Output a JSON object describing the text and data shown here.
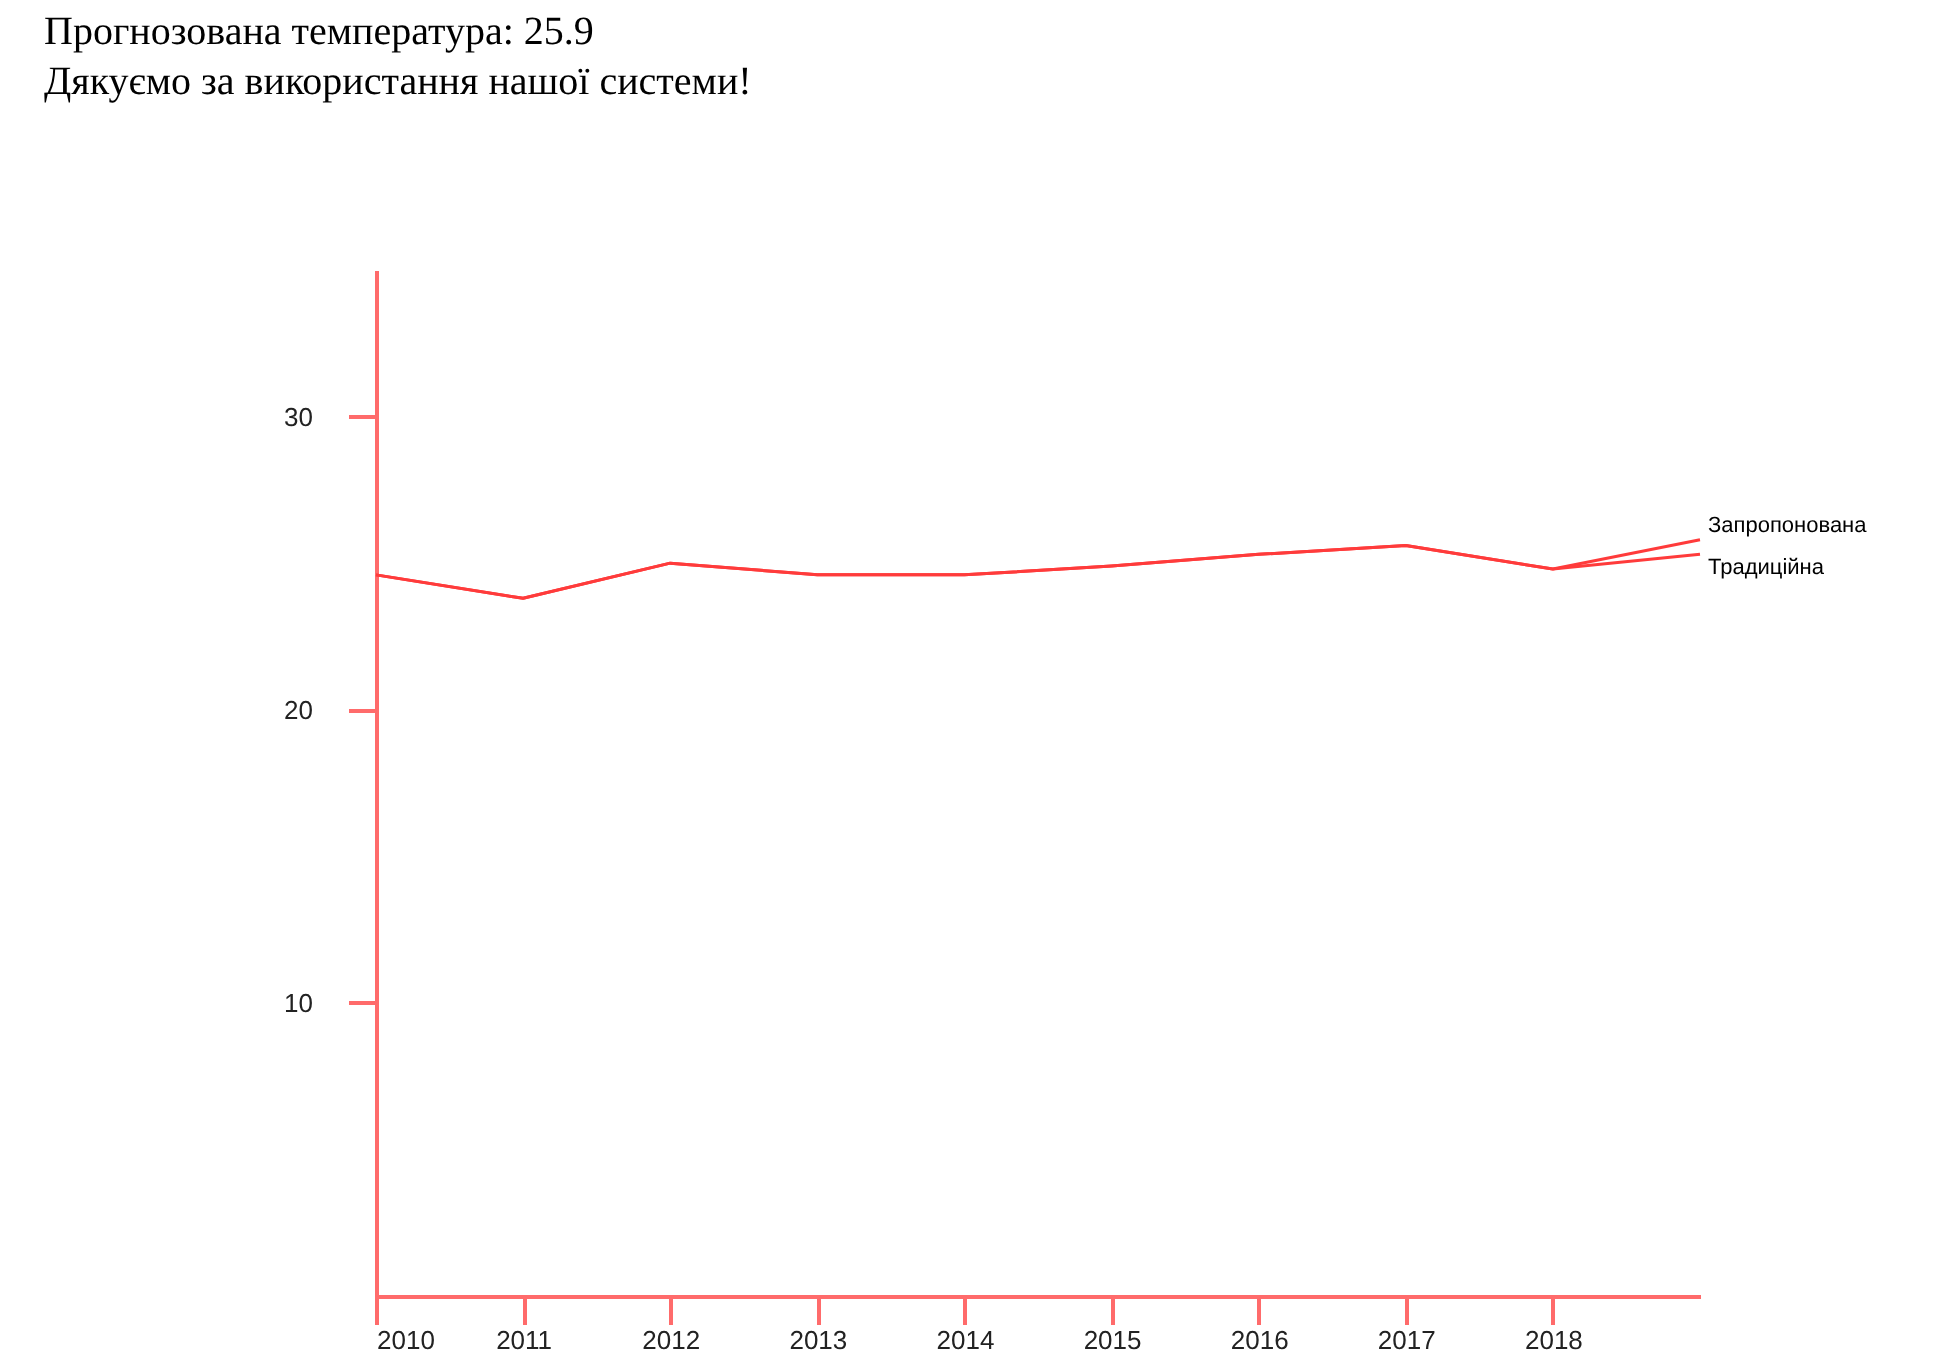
{
  "chart_data": {
    "type": "line",
    "title": "Прогнозована температура: 25.9",
    "subtitle": "Дякуємо за використання нашої системи!",
    "x": [
      2010,
      2011,
      2012,
      2013,
      2014,
      2015,
      2016,
      2017,
      2018,
      2019
    ],
    "series": [
      {
        "name": "Запропонована",
        "color": "#ff3b3b",
        "values": [
          24.6,
          23.8,
          25.0,
          24.6,
          24.6,
          24.9,
          25.3,
          25.6,
          24.8,
          25.8
        ]
      },
      {
        "name": "Традиційна",
        "color": "#ff3b3b",
        "values": [
          24.6,
          23.8,
          25.0,
          24.6,
          24.6,
          24.9,
          25.3,
          25.6,
          24.8,
          25.3
        ]
      }
    ],
    "xlim": [
      2010,
      2019
    ],
    "xticks": [
      2010,
      2011,
      2012,
      2013,
      2014,
      2015,
      2016,
      2017,
      2018
    ],
    "ylim": [
      0,
      35
    ],
    "yticks": [
      10,
      20,
      30
    ],
    "grid": false,
    "legend": false,
    "marker": "none",
    "line_style": "solid"
  }
}
